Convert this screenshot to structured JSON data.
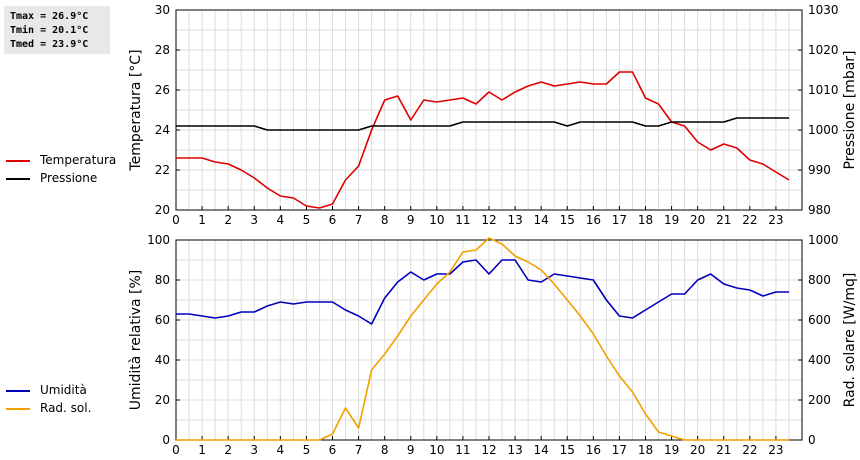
{
  "stats": {
    "tmax": "Tmax = 26.9°C",
    "tmin": "Tmin = 20.1°C",
    "tmed": "Tmed = 23.9°C"
  },
  "legend_top": [
    {
      "label": "Temperatura",
      "color": "#dd0000"
    },
    {
      "label": "Pressione",
      "color": "#000000"
    }
  ],
  "legend_bottom": [
    {
      "label": "Umidità",
      "color": "#0000bb"
    },
    {
      "label": "Rad. sol.",
      "color": "#f0a000"
    }
  ],
  "chart_data": [
    {
      "type": "line",
      "xlim": [
        0,
        24
      ],
      "x_ticks": [
        0,
        1,
        2,
        3,
        4,
        5,
        6,
        7,
        8,
        9,
        10,
        11,
        12,
        13,
        14,
        15,
        16,
        17,
        18,
        19,
        20,
        21,
        22,
        23
      ],
      "grid": true,
      "legend": "left",
      "ylabel_left": "Temperatura [°C]",
      "ylim_left": [
        20,
        30
      ],
      "y_ticks_left": [
        20,
        22,
        24,
        26,
        28,
        30
      ],
      "ylabel_right": "Pressione [mbar]",
      "ylim_right": [
        980,
        1030
      ],
      "y_ticks_right": [
        980,
        990,
        1000,
        1010,
        1020,
        1030
      ],
      "series": [
        {
          "name": "Temperatura",
          "axis": "left",
          "color": "#dd0000",
          "x": [
            0,
            0.5,
            1,
            1.5,
            2,
            2.5,
            3,
            3.5,
            4,
            4.5,
            5,
            5.5,
            6,
            6.5,
            7,
            7.5,
            8,
            8.5,
            9,
            9.5,
            10,
            10.5,
            11,
            11.5,
            12,
            12.5,
            13,
            13.5,
            14,
            14.5,
            15,
            15.5,
            16,
            16.5,
            17,
            17.5,
            18,
            18.5,
            19,
            19.5,
            20,
            20.5,
            21,
            21.5,
            22,
            22.5,
            23,
            23.5
          ],
          "y": [
            22.6,
            22.6,
            22.6,
            22.4,
            22.3,
            22.0,
            21.6,
            21.1,
            20.7,
            20.6,
            20.2,
            20.1,
            20.3,
            21.5,
            22.2,
            24.0,
            25.5,
            25.7,
            24.5,
            25.5,
            25.4,
            25.5,
            25.6,
            25.3,
            25.9,
            25.5,
            25.9,
            26.2,
            26.4,
            26.2,
            26.3,
            26.4,
            26.3,
            26.3,
            26.9,
            26.9,
            25.6,
            25.3,
            24.4,
            24.2,
            23.4,
            23.0,
            23.3,
            23.1,
            22.5,
            22.3,
            21.9,
            21.5
          ]
        },
        {
          "name": "Pressione",
          "axis": "right",
          "color": "#000000",
          "x": [
            0,
            0.5,
            1,
            1.5,
            2,
            2.5,
            3,
            3.5,
            4,
            4.5,
            5,
            5.5,
            6,
            6.5,
            7,
            7.5,
            8,
            8.5,
            9,
            9.5,
            10,
            10.5,
            11,
            11.5,
            12,
            12.5,
            13,
            13.5,
            14,
            14.5,
            15,
            15.5,
            16,
            16.5,
            17,
            17.5,
            18,
            18.5,
            19,
            19.5,
            20,
            20.5,
            21,
            21.5,
            22,
            22.5,
            23,
            23.5
          ],
          "y": [
            1001,
            1001,
            1001,
            1001,
            1001,
            1001,
            1001,
            1000,
            1000,
            1000,
            1000,
            1000,
            1000,
            1000,
            1000,
            1001,
            1001,
            1001,
            1001,
            1001,
            1001,
            1001,
            1002,
            1002,
            1002,
            1002,
            1002,
            1002,
            1002,
            1002,
            1001,
            1002,
            1002,
            1002,
            1002,
            1002,
            1001,
            1001,
            1002,
            1002,
            1002,
            1002,
            1002,
            1003,
            1003,
            1003,
            1003,
            1003
          ]
        }
      ]
    },
    {
      "type": "line",
      "xlim": [
        0,
        24
      ],
      "x_ticks": [
        0,
        1,
        2,
        3,
        4,
        5,
        6,
        7,
        8,
        9,
        10,
        11,
        12,
        13,
        14,
        15,
        16,
        17,
        18,
        19,
        20,
        21,
        22,
        23
      ],
      "grid": true,
      "legend": "left",
      "ylabel_left": "Umidità relativa [%]",
      "ylim_left": [
        0,
        100
      ],
      "y_ticks_left": [
        0,
        20,
        40,
        60,
        80,
        100
      ],
      "ylabel_right": "Rad. solare [W/mq]",
      "ylim_right": [
        0,
        1000
      ],
      "y_ticks_right": [
        0,
        200,
        400,
        600,
        800,
        1000
      ],
      "series": [
        {
          "name": "Umidità",
          "axis": "left",
          "color": "#0000bb",
          "x": [
            0,
            0.5,
            1,
            1.5,
            2,
            2.5,
            3,
            3.5,
            4,
            4.5,
            5,
            5.5,
            6,
            6.5,
            7,
            7.5,
            8,
            8.5,
            9,
            9.5,
            10,
            10.5,
            11,
            11.5,
            12,
            12.5,
            13,
            13.5,
            14,
            14.5,
            15,
            15.5,
            16,
            16.5,
            17,
            17.5,
            18,
            18.5,
            19,
            19.5,
            20,
            20.5,
            21,
            21.5,
            22,
            22.5,
            23,
            23.5
          ],
          "y": [
            63,
            63,
            62,
            61,
            62,
            64,
            64,
            67,
            69,
            68,
            69,
            69,
            69,
            65,
            62,
            58,
            71,
            79,
            84,
            80,
            83,
            83,
            89,
            90,
            83,
            90,
            90,
            80,
            79,
            83,
            82,
            81,
            80,
            70,
            62,
            61,
            65,
            69,
            73,
            73,
            80,
            83,
            78,
            76,
            75,
            72,
            74,
            74
          ]
        },
        {
          "name": "Rad. sol.",
          "axis": "right",
          "color": "#f0a000",
          "x": [
            0,
            0.5,
            1,
            1.5,
            2,
            2.5,
            3,
            3.5,
            4,
            4.5,
            5,
            5.5,
            6,
            6.5,
            7,
            7.5,
            8,
            8.5,
            9,
            9.5,
            10,
            10.5,
            11,
            11.5,
            12,
            12.5,
            13,
            13.5,
            14,
            14.5,
            15,
            15.5,
            16,
            16.5,
            17,
            17.5,
            18,
            18.5,
            19,
            19.5,
            20,
            20.5,
            21,
            21.5,
            22,
            22.5,
            23,
            23.5
          ],
          "y": [
            0,
            0,
            0,
            0,
            0,
            0,
            0,
            0,
            0,
            0,
            0,
            0,
            30,
            160,
            60,
            350,
            430,
            520,
            620,
            700,
            780,
            840,
            940,
            950,
            1010,
            980,
            920,
            890,
            850,
            780,
            700,
            620,
            530,
            420,
            320,
            240,
            130,
            40,
            20,
            0,
            0,
            0,
            0,
            0,
            0,
            0,
            0,
            0
          ]
        }
      ]
    }
  ]
}
